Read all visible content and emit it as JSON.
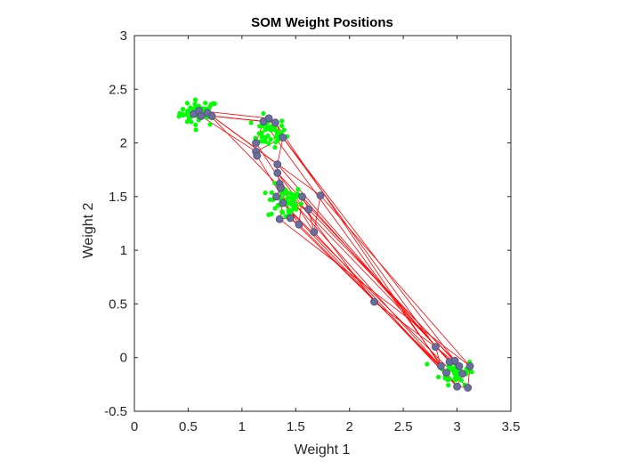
{
  "chart_data": {
    "type": "scatter",
    "title": "SOM Weight Positions",
    "xlabel": "Weight 1",
    "ylabel": "Weight 2",
    "xlim": [
      0,
      3.5
    ],
    "ylim": [
      -0.5,
      3
    ],
    "xticks": [
      0,
      0.5,
      1,
      1.5,
      2,
      2.5,
      3,
      3.5
    ],
    "xtick_labels": [
      "0",
      "0.5",
      "1",
      "1.5",
      "2",
      "2.5",
      "3",
      "3.5"
    ],
    "yticks": [
      -0.5,
      0,
      0.5,
      1,
      1.5,
      2,
      2.5,
      3
    ],
    "ytick_labels": [
      "-0.5",
      "0",
      "0.5",
      "1",
      "1.5",
      "2",
      "2.5",
      "3"
    ],
    "grid": false,
    "colors": {
      "data_points": "#00ff00",
      "neurons": "#6b6e9c",
      "neuron_edge": "#4a4f7a",
      "connections": "#ff0000",
      "axes": "#262626"
    },
    "clusters": [
      {
        "center": [
          0.6,
          2.28
        ],
        "spread": [
          0.09,
          0.06
        ],
        "count": 45
      },
      {
        "center": [
          1.25,
          2.1
        ],
        "spread": [
          0.08,
          0.07
        ],
        "count": 45
      },
      {
        "center": [
          1.4,
          1.45
        ],
        "spread": [
          0.08,
          0.08
        ],
        "count": 50
      },
      {
        "center": [
          3.0,
          -0.13
        ],
        "spread": [
          0.08,
          0.06
        ],
        "count": 45
      }
    ],
    "neurons": [
      [
        0.55,
        2.27
      ],
      [
        0.6,
        2.3
      ],
      [
        0.62,
        2.25
      ],
      [
        0.68,
        2.28
      ],
      [
        0.72,
        2.25
      ],
      [
        1.13,
        1.92
      ],
      [
        1.14,
        1.88
      ],
      [
        1.13,
        2.0
      ],
      [
        1.2,
        2.2
      ],
      [
        1.25,
        2.23
      ],
      [
        1.31,
        2.19
      ],
      [
        1.38,
        2.05
      ],
      [
        1.33,
        1.8
      ],
      [
        1.33,
        1.72
      ],
      [
        1.35,
        1.62
      ],
      [
        1.36,
        1.58
      ],
      [
        1.32,
        1.5
      ],
      [
        1.38,
        1.44
      ],
      [
        1.35,
        1.29
      ],
      [
        1.45,
        1.3
      ],
      [
        1.53,
        1.24
      ],
      [
        1.56,
        1.5
      ],
      [
        1.62,
        1.38
      ],
      [
        1.67,
        1.17
      ],
      [
        1.73,
        1.51
      ],
      [
        2.23,
        0.52
      ],
      [
        2.8,
        0.1
      ],
      [
        2.85,
        -0.08
      ],
      [
        2.9,
        -0.14
      ],
      [
        2.93,
        -0.04
      ],
      [
        2.98,
        -0.03
      ],
      [
        3.02,
        -0.08
      ],
      [
        3.05,
        -0.15
      ],
      [
        3.0,
        -0.27
      ],
      [
        3.1,
        -0.28
      ],
      [
        3.12,
        -0.08
      ]
    ],
    "connections": [
      [
        0,
        8
      ],
      [
        1,
        9
      ],
      [
        2,
        5
      ],
      [
        3,
        24
      ],
      [
        4,
        12
      ],
      [
        0,
        1
      ],
      [
        1,
        2
      ],
      [
        2,
        3
      ],
      [
        3,
        4
      ],
      [
        4,
        10
      ],
      [
        5,
        6
      ],
      [
        6,
        7
      ],
      [
        7,
        8
      ],
      [
        8,
        9
      ],
      [
        9,
        10
      ],
      [
        10,
        11
      ],
      [
        11,
        12
      ],
      [
        5,
        11
      ],
      [
        6,
        20
      ],
      [
        7,
        23
      ],
      [
        9,
        26
      ],
      [
        10,
        27
      ],
      [
        11,
        30
      ],
      [
        12,
        29
      ],
      [
        13,
        31
      ],
      [
        14,
        32
      ],
      [
        15,
        28
      ],
      [
        16,
        33
      ],
      [
        17,
        34
      ],
      [
        18,
        35
      ],
      [
        19,
        27
      ],
      [
        20,
        28
      ],
      [
        21,
        29
      ],
      [
        22,
        30
      ],
      [
        23,
        33
      ],
      [
        24,
        35
      ],
      [
        25,
        26
      ],
      [
        13,
        25
      ],
      [
        14,
        19
      ],
      [
        16,
        22
      ],
      [
        12,
        13
      ],
      [
        13,
        14
      ],
      [
        14,
        15
      ],
      [
        15,
        16
      ],
      [
        16,
        17
      ],
      [
        17,
        18
      ],
      [
        18,
        19
      ],
      [
        19,
        20
      ],
      [
        20,
        21
      ],
      [
        21,
        22
      ],
      [
        22,
        23
      ],
      [
        23,
        24
      ],
      [
        26,
        27
      ],
      [
        27,
        28
      ],
      [
        28,
        29
      ],
      [
        29,
        30
      ],
      [
        30,
        31
      ],
      [
        31,
        32
      ],
      [
        32,
        33
      ],
      [
        33,
        34
      ],
      [
        34,
        35
      ],
      [
        26,
        31
      ],
      [
        8,
        33
      ],
      [
        3,
        15
      ]
    ]
  }
}
